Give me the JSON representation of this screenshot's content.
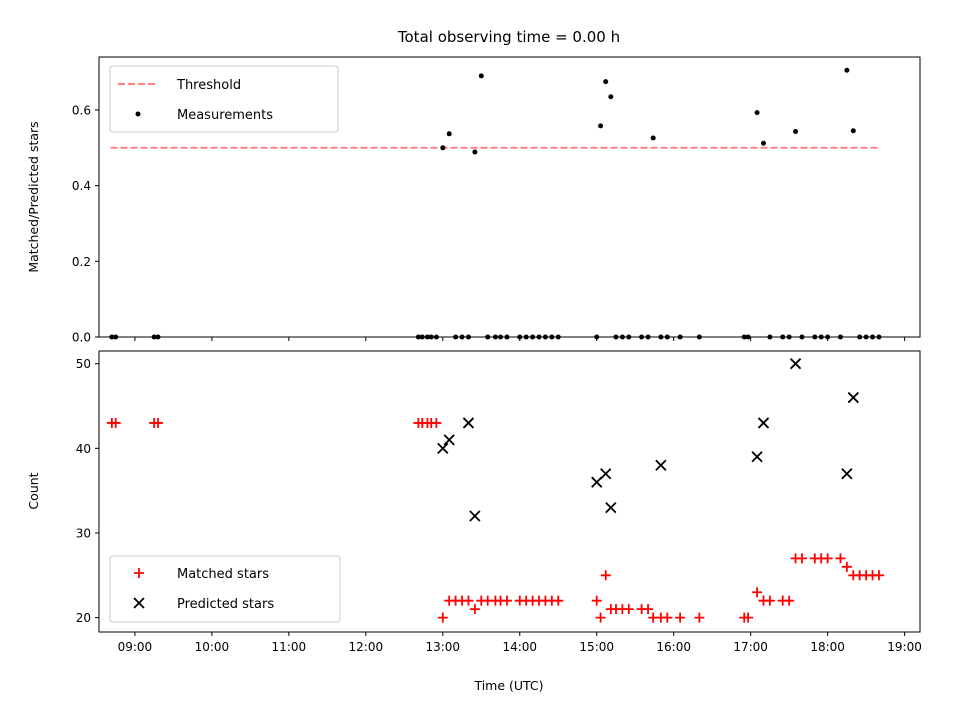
{
  "chart_data": [
    {
      "type": "scatter",
      "title": "Total observing time = 0.00 h",
      "xlabel": "",
      "ylabel": "Matched/Predicted stars",
      "xlim": [
        "08:32",
        "19:12"
      ],
      "ylim": [
        0.0,
        0.74
      ],
      "yticks": [
        "0.0",
        "0.2",
        "0.4",
        "0.6"
      ],
      "grid": false,
      "legend_position": "top-left",
      "threshold": {
        "name": "Threshold",
        "value": 0.5,
        "x_range": [
          "08:41",
          "18:41"
        ],
        "color": "#ff8080"
      },
      "series": [
        {
          "name": "Measurements",
          "color": "#000000",
          "x": [
            "08:42",
            "08:45",
            "09:15",
            "09:18",
            "12:41",
            "12:44",
            "12:48",
            "12:51",
            "12:55",
            "13:00",
            "13:05",
            "13:10",
            "13:15",
            "13:20",
            "13:25",
            "13:30",
            "13:35",
            "13:41",
            "13:45",
            "13:50",
            "14:00",
            "14:05",
            "14:10",
            "14:15",
            "14:20",
            "14:25",
            "14:30",
            "15:00",
            "15:03",
            "15:07",
            "15:11",
            "15:15",
            "15:20",
            "15:25",
            "15:35",
            "15:40",
            "15:44",
            "15:50",
            "15:55",
            "16:05",
            "16:20",
            "16:55",
            "16:58",
            "17:05",
            "17:10",
            "17:15",
            "17:25",
            "17:30",
            "17:35",
            "17:40",
            "17:50",
            "17:55",
            "18:00",
            "18:10",
            "18:15",
            "18:20",
            "18:25",
            "18:30",
            "18:35",
            "18:40"
          ],
          "y": [
            0,
            0,
            0,
            0,
            0,
            0,
            0,
            0,
            0,
            0.5,
            0.537,
            0,
            0,
            0,
            0.489,
            0.69,
            0,
            0,
            0,
            0,
            0,
            0,
            0,
            0,
            0,
            0,
            0,
            0,
            0.558,
            0.675,
            0.635,
            0,
            0,
            0,
            0,
            0,
            0.526,
            0,
            0,
            0,
            0,
            0,
            0,
            0.593,
            0.512,
            0,
            0,
            0,
            0.543,
            0,
            0,
            0,
            0,
            0,
            0.705,
            0.545,
            0,
            0,
            0,
            0
          ]
        }
      ]
    },
    {
      "type": "scatter",
      "title": "",
      "xlabel": "Time (UTC)",
      "ylabel": "Count",
      "xlim": [
        "08:32",
        "19:12"
      ],
      "ylim": [
        18.3,
        51.5
      ],
      "yticks": [
        "20",
        "30",
        "40",
        "50"
      ],
      "xticks": [
        "09:00",
        "10:00",
        "11:00",
        "12:00",
        "13:00",
        "14:00",
        "15:00",
        "16:00",
        "17:00",
        "18:00",
        "19:00"
      ],
      "grid": false,
      "legend_position": "bottom-left",
      "series": [
        {
          "name": "Matched stars",
          "color": "#ff0000",
          "x": [
            "08:42",
            "08:45",
            "09:15",
            "09:18",
            "12:41",
            "12:44",
            "12:48",
            "12:51",
            "12:55",
            "13:00",
            "13:05",
            "13:10",
            "13:15",
            "13:20",
            "13:25",
            "13:30",
            "13:35",
            "13:41",
            "13:45",
            "13:50",
            "14:00",
            "14:05",
            "14:10",
            "14:15",
            "14:20",
            "14:25",
            "14:30",
            "15:00",
            "15:03",
            "15:07",
            "15:11",
            "15:15",
            "15:20",
            "15:25",
            "15:35",
            "15:40",
            "15:44",
            "15:50",
            "15:55",
            "16:05",
            "16:20",
            "16:55",
            "16:58",
            "17:05",
            "17:10",
            "17:15",
            "17:25",
            "17:30",
            "17:35",
            "17:40",
            "17:50",
            "17:55",
            "18:00",
            "18:10",
            "18:15",
            "18:20",
            "18:25",
            "18:30",
            "18:35",
            "18:40"
          ],
          "y": [
            43,
            43,
            43,
            43,
            43,
            43,
            43,
            43,
            43,
            20,
            22,
            22,
            22,
            22,
            21,
            22,
            22,
            22,
            22,
            22,
            22,
            22,
            22,
            22,
            22,
            22,
            22,
            22,
            20,
            25,
            21,
            21,
            21,
            21,
            21,
            21,
            20,
            20,
            20,
            20,
            20,
            20,
            20,
            23,
            22,
            22,
            22,
            22,
            27,
            27,
            27,
            27,
            27,
            27,
            26,
            25,
            25,
            25,
            25,
            25
          ]
        },
        {
          "name": "Predicted stars",
          "color": "#000000",
          "x": [
            "13:00",
            "13:05",
            "13:20",
            "13:25",
            "15:00",
            "15:07",
            "15:11",
            "15:50",
            "17:05",
            "17:10",
            "17:35",
            "18:15",
            "18:20"
          ],
          "y": [
            40,
            41,
            43,
            32,
            36,
            37,
            33,
            38,
            39,
            43,
            50,
            37,
            46
          ]
        }
      ]
    }
  ]
}
